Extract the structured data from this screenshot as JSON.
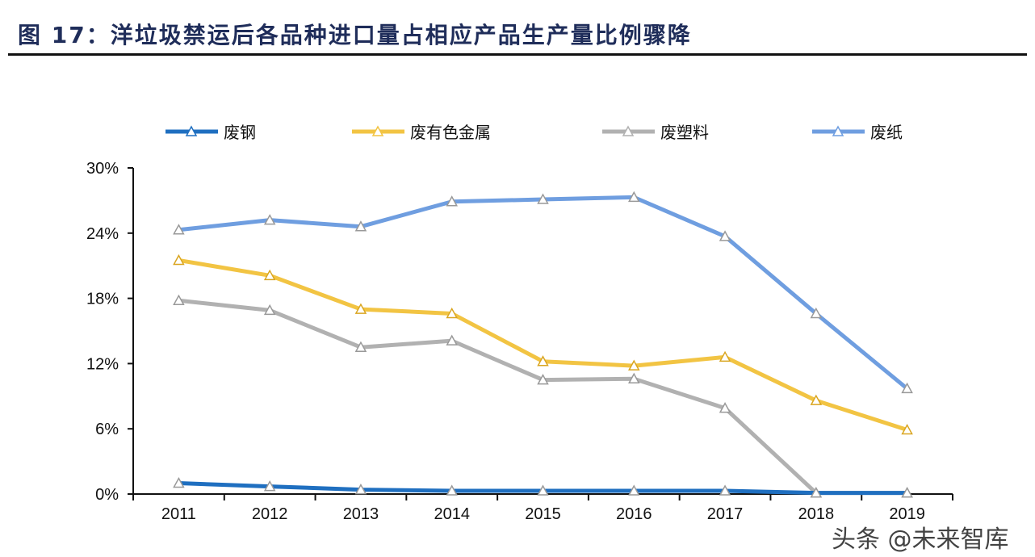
{
  "title": "图 17：洋垃圾禁运后各品种进口量占相应产品生产量比例骤降",
  "watermark": "头条 @未来智库",
  "chart_data": {
    "type": "line",
    "categories": [
      "2011",
      "2012",
      "2013",
      "2014",
      "2015",
      "2016",
      "2017",
      "2018",
      "2019"
    ],
    "ylim": [
      0,
      30
    ],
    "yticks": [
      0,
      6,
      12,
      18,
      24,
      30
    ],
    "ytick_labels": [
      "0%",
      "6%",
      "12%",
      "18%",
      "24%",
      "30%"
    ],
    "grid": false,
    "legend": "top",
    "marker": "triangle",
    "series": [
      {
        "name": "废钢",
        "color": "#1f6fc0",
        "values": [
          1.0,
          0.7,
          0.4,
          0.3,
          0.3,
          0.3,
          0.3,
          0.1,
          0.1
        ]
      },
      {
        "name": "废有色金属",
        "color": "#f2c443",
        "values": [
          21.5,
          20.1,
          17.0,
          16.6,
          12.2,
          11.8,
          12.6,
          8.6,
          5.9
        ]
      },
      {
        "name": "废塑料",
        "color": "#b1b1b1",
        "values": [
          17.8,
          16.9,
          13.5,
          14.1,
          10.5,
          10.6,
          7.9,
          0.1,
          0.1
        ]
      },
      {
        "name": "废纸",
        "color": "#6f9ee0",
        "values": [
          24.3,
          25.2,
          24.6,
          26.9,
          27.1,
          27.3,
          23.7,
          16.6,
          9.7
        ]
      }
    ]
  }
}
